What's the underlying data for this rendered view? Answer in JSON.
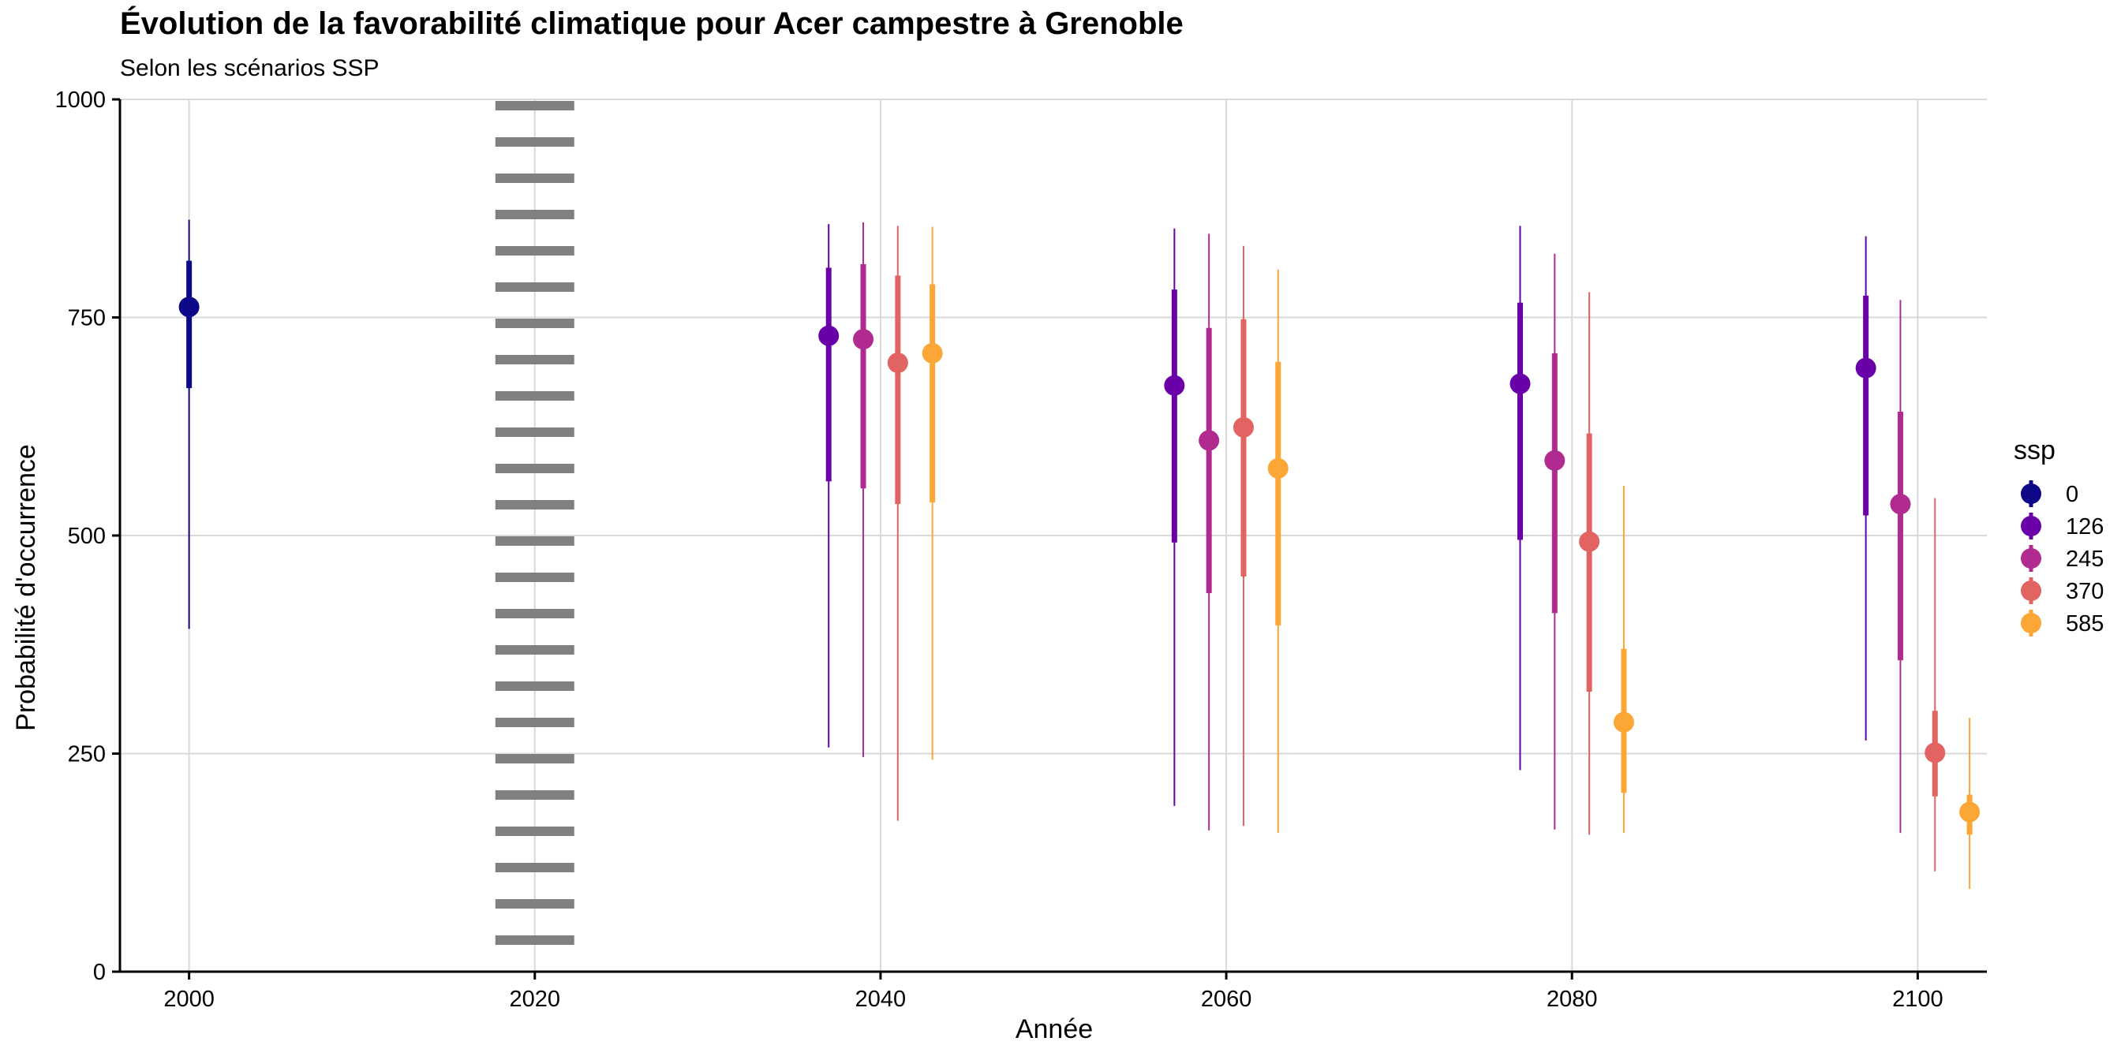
{
  "chart_data": {
    "type": "pointrange",
    "title": "Évolution de la favorabilité climatique pour Acer campestre à Grenoble",
    "subtitle": "Selon les scénarios SSP",
    "xlabel": "Année",
    "ylabel": "Probabilité d'occurrence",
    "xlim": [
      1996,
      2104
    ],
    "ylim": [
      0,
      1000
    ],
    "x_ticks": [
      2000,
      2020,
      2040,
      2060,
      2080,
      2100
    ],
    "y_ticks": [
      0,
      250,
      500,
      750,
      1000
    ],
    "grid": true,
    "reference_line": {
      "x": 2020,
      "style": "dotted",
      "color": "#808080"
    },
    "legend": {
      "title": "ssp",
      "position": "right"
    },
    "series": [
      {
        "name": "0",
        "color": "#0d0887",
        "points": [
          {
            "x": 2000,
            "y": 762,
            "inner": [
              669,
              815
            ],
            "outer": [
              393,
              862
            ]
          }
        ]
      },
      {
        "name": "126",
        "color": "#6a00a8",
        "points": [
          {
            "x": 2037,
            "y": 729,
            "inner": [
              562,
              807
            ],
            "outer": [
              257,
              857
            ]
          },
          {
            "x": 2057,
            "y": 672,
            "inner": [
              492,
              782
            ],
            "outer": [
              190,
              852
            ]
          },
          {
            "x": 2077,
            "y": 674,
            "inner": [
              495,
              767
            ],
            "outer": [
              231,
              855
            ]
          },
          {
            "x": 2097,
            "y": 692,
            "inner": [
              523,
              775
            ],
            "outer": [
              265,
              843
            ]
          }
        ]
      },
      {
        "name": "245",
        "color": "#b12a90",
        "points": [
          {
            "x": 2039,
            "y": 725,
            "inner": [
              554,
              811
            ],
            "outer": [
              246,
              859
            ]
          },
          {
            "x": 2059,
            "y": 609,
            "inner": [
              434,
              738
            ],
            "outer": [
              162,
              846
            ]
          },
          {
            "x": 2079,
            "y": 586,
            "inner": [
              411,
              709
            ],
            "outer": [
              163,
              823
            ]
          },
          {
            "x": 2099,
            "y": 536,
            "inner": [
              357,
              642
            ],
            "outer": [
              159,
              770
            ]
          }
        ]
      },
      {
        "name": "370",
        "color": "#e16462",
        "points": [
          {
            "x": 2041,
            "y": 698,
            "inner": [
              536,
              798
            ],
            "outer": [
              173,
              855
            ]
          },
          {
            "x": 2061,
            "y": 624,
            "inner": [
              453,
              748
            ],
            "outer": [
              167,
              832
            ]
          },
          {
            "x": 2081,
            "y": 493,
            "inner": [
              321,
              617
            ],
            "outer": [
              157,
              779
            ]
          },
          {
            "x": 2101,
            "y": 251,
            "inner": [
              201,
              299
            ],
            "outer": [
              115,
              543
            ]
          }
        ]
      },
      {
        "name": "585",
        "color": "#fca636",
        "points": [
          {
            "x": 2043,
            "y": 709,
            "inner": [
              538,
              788
            ],
            "outer": [
              243,
              854
            ]
          },
          {
            "x": 2063,
            "y": 577,
            "inner": [
              397,
              699
            ],
            "outer": [
              159,
              805
            ]
          },
          {
            "x": 2083,
            "y": 286,
            "inner": [
              205,
              370
            ],
            "outer": [
              159,
              557
            ]
          },
          {
            "x": 2103,
            "y": 183,
            "inner": [
              157,
              203
            ],
            "outer": [
              95,
              291
            ]
          }
        ]
      }
    ]
  }
}
